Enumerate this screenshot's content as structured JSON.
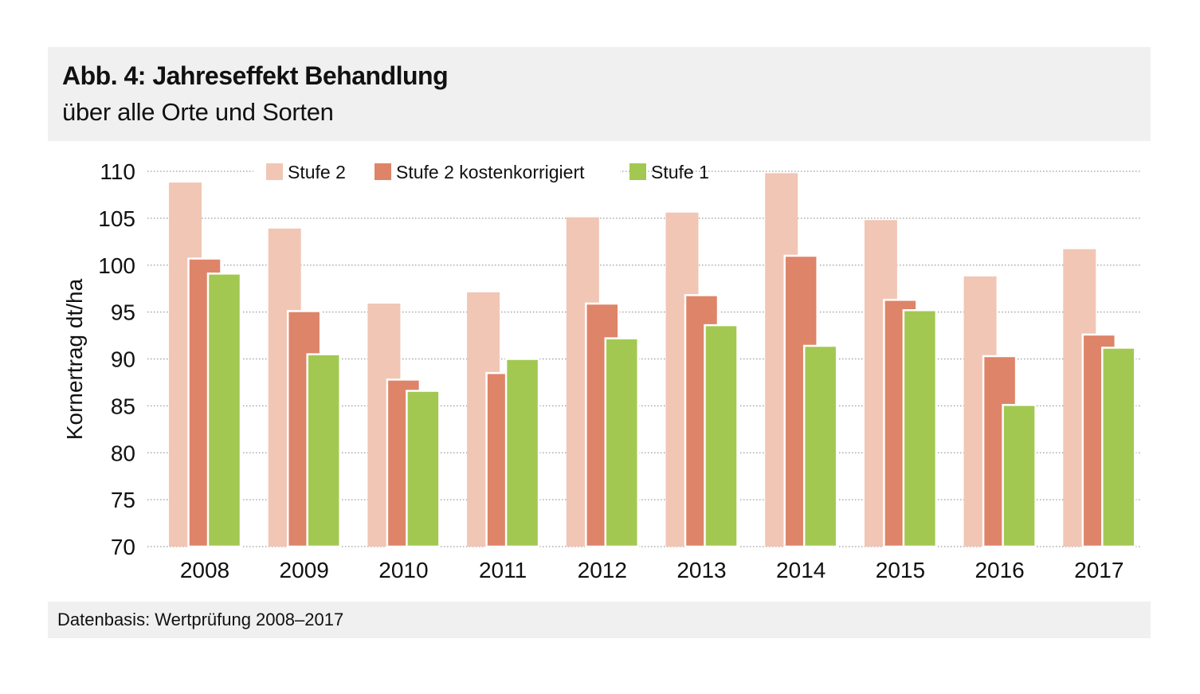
{
  "header": {
    "title": "Abb. 4: Jahreseffekt Behandlung",
    "subtitle": "über alle Orte und Sorten"
  },
  "footer": {
    "source": "Datenbasis: Wertprüfung 2008–2017"
  },
  "chart_data": {
    "type": "bar",
    "title": "Abb. 4: Jahreseffekt Behandlung",
    "subtitle": "über alle Orte und Sorten",
    "xlabel": "",
    "ylabel": "Kornertrag dt/ha",
    "ylim": [
      70,
      110
    ],
    "yticks": [
      70,
      75,
      80,
      85,
      90,
      95,
      100,
      105,
      110
    ],
    "grid": true,
    "legend_position": "top",
    "categories": [
      "2008",
      "2009",
      "2010",
      "2011",
      "2012",
      "2013",
      "2014",
      "2015",
      "2016",
      "2017"
    ],
    "series": [
      {
        "name": "Stufe 2",
        "color": "#f1c6b5",
        "values": [
          108.8,
          103.9,
          95.9,
          97.1,
          105.1,
          105.6,
          109.8,
          104.8,
          98.8,
          101.7
        ]
      },
      {
        "name": "Stufe 2 kostenkorrigiert",
        "color": "#de8469",
        "values": [
          100.7,
          95.1,
          87.8,
          88.5,
          95.9,
          96.8,
          101.0,
          96.3,
          90.3,
          92.6
        ]
      },
      {
        "name": "Stufe 1",
        "color": "#a2c852",
        "values": [
          99.1,
          90.5,
          86.6,
          90.0,
          92.2,
          93.6,
          91.4,
          95.2,
          85.1,
          91.2
        ]
      }
    ]
  }
}
